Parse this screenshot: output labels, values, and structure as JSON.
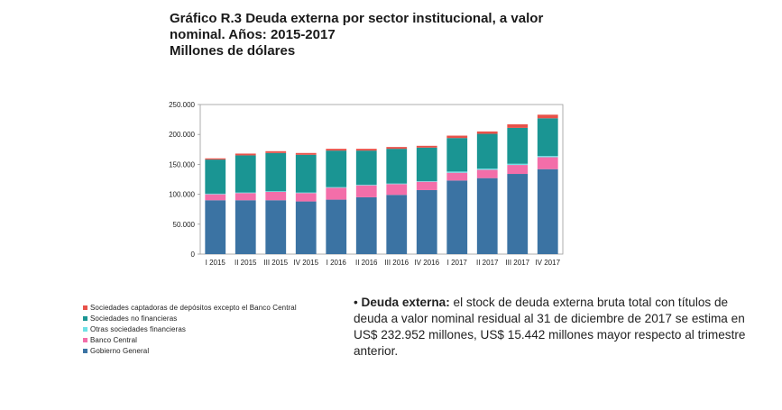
{
  "title": {
    "line1": "Gráfico R.3 Deuda externa por sector institucional, a valor",
    "line2": "nominal. Años: 2015-2017",
    "line3": "Millones de dólares"
  },
  "colors": {
    "sociedades_captadoras": "#e8524a",
    "sociedades_no_financieras": "#1a9593",
    "otras_sociedades_financieras": "#6fe1e6",
    "banco_central": "#f36ea9",
    "gobierno_general": "#3b73a3"
  },
  "chart_data": {
    "type": "bar",
    "stacked": true,
    "categories": [
      "I 2015",
      "II 2015",
      "III 2015",
      "IV 2015",
      "I 2016",
      "II 2016",
      "III 2016",
      "IV 2016",
      "I 2017",
      "II 2017",
      "III 2017",
      "IV 2017"
    ],
    "ylim": [
      0,
      250000
    ],
    "yticks": [
      "0",
      "50.000",
      "100.000",
      "150.000",
      "200.000",
      "250.000"
    ],
    "ytick_values": [
      0,
      50000,
      100000,
      150000,
      200000,
      250000
    ],
    "grid": false,
    "legend_position": "bottom-left",
    "series": [
      {
        "name": "Gobierno General",
        "color_key": "gobierno_general",
        "values": [
          90000,
          90000,
          90000,
          88000,
          91000,
          95000,
          99000,
          107000,
          123000,
          127000,
          134000,
          142000
        ]
      },
      {
        "name": "Banco Central",
        "color_key": "banco_central",
        "values": [
          10000,
          12000,
          14000,
          14000,
          20000,
          20000,
          18000,
          14000,
          13000,
          14000,
          15000,
          20000
        ]
      },
      {
        "name": "Otras sociedades financieras",
        "color_key": "otras_sociedades_financieras",
        "values": [
          1000,
          1000,
          1000,
          1000,
          1000,
          1000,
          1000,
          1000,
          2000,
          2000,
          2000,
          2000
        ]
      },
      {
        "name": "Sociedades no financieras",
        "color_key": "sociedades_no_financieras",
        "values": [
          57000,
          62000,
          64000,
          63000,
          61000,
          57000,
          58000,
          56000,
          56000,
          58000,
          60000,
          63000
        ]
      },
      {
        "name": "Sociedades captadoras de depósitos excepto el Banco Central",
        "color_key": "sociedades_captadoras",
        "values": [
          2000,
          3000,
          3000,
          3000,
          3000,
          3000,
          3000,
          3000,
          4000,
          4000,
          6000,
          6000
        ]
      }
    ]
  },
  "legend": [
    {
      "label": "Sociedades captadoras de depósitos excepto el Banco Central",
      "color_key": "sociedades_captadoras"
    },
    {
      "label": "Sociedades no financieras",
      "color_key": "sociedades_no_financieras"
    },
    {
      "label": "Otras sociedades financieras",
      "color_key": "otras_sociedades_financieras"
    },
    {
      "label": "Banco Central",
      "color_key": "banco_central"
    },
    {
      "label": "Gobierno General",
      "color_key": "gobierno_general"
    }
  ],
  "paragraph": {
    "bullet": "•",
    "bold": "Deuda externa:",
    "text": " el stock de deuda externa bruta total con títulos de deuda a valor nominal residual al 31 de diciembre de 2017 se estima en US$ 232.952 millones, US$ 15.442 millones mayor respecto al trimestre anterior."
  }
}
